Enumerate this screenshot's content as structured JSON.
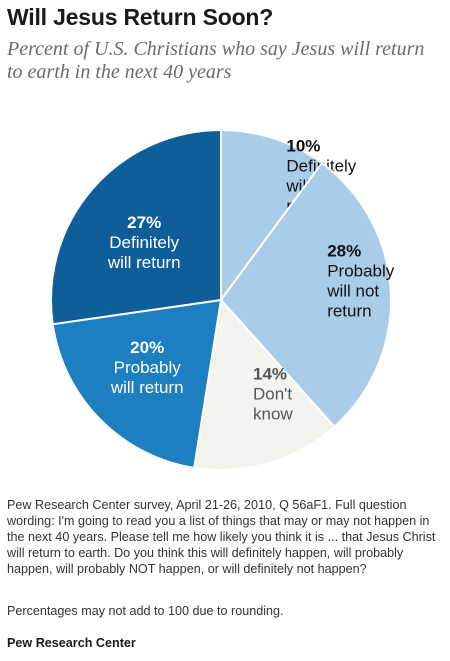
{
  "chart_data": {
    "type": "pie",
    "title": "Will Jesus Return Soon?",
    "subtitle": "Percent of U.S. Christians who say Jesus will return to earth in the next 40 years",
    "slices": [
      {
        "label": "Definitely will not return",
        "value": 10,
        "pct": "10%",
        "lines": [
          "Definitely",
          "will not",
          "return"
        ],
        "color": "#a9cde9",
        "text_color": "#111111"
      },
      {
        "label": "Probably will not return",
        "value": 28,
        "pct": "28%",
        "lines": [
          "Probably",
          "will not",
          "return"
        ],
        "color": "#a9cde9",
        "text_color": "#111111"
      },
      {
        "label": "Don't know",
        "value": 14,
        "pct": "14%",
        "lines": [
          "Don't",
          "know"
        ],
        "color": "#f4f4ee",
        "text_color": "#555555"
      },
      {
        "label": "Probably will return",
        "value": 20,
        "pct": "20%",
        "lines": [
          "Probably",
          "will return"
        ],
        "color": "#1e7fc0",
        "text_color": "#ffffff"
      },
      {
        "label": "Definitely will return",
        "value": 27,
        "pct": "27%",
        "lines": [
          "Definitely",
          "will return"
        ],
        "color": "#0f5e99",
        "text_color": "#ffffff"
      }
    ]
  },
  "notes": {
    "survey": "Pew Research Center survey, April 21-26, 2010, Q 56aF1. Full question wording: I'm going to read you a list of things that may or may not happen in the next 40 years. Please tell me how likely you think it is ... that Jesus Christ will return to earth. Do you think this will definitely happen, will probably happen, will probably NOT happen, or will definitely not happen?",
    "rounding": "Percentages may not add to 100 due to rounding.",
    "source": "Pew Research Center"
  }
}
